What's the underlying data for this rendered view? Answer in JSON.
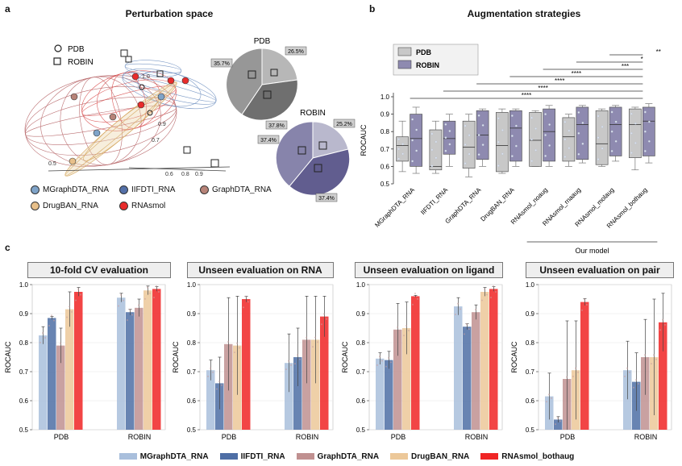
{
  "panel_labels": {
    "a": "a",
    "b": "b",
    "c": "c"
  },
  "panel_a": {
    "title": "Perturbation space",
    "legend_shapes": [
      "PDB",
      "ROBIN"
    ],
    "pie_pdb_title": "PDB",
    "pie_robin_title": "ROBIN",
    "pie_pdb_labels": [
      "26.5%",
      "35.7%",
      "37.8%"
    ],
    "pie_robin_labels": [
      "25.2%",
      "37.4%",
      "37.4%"
    ],
    "model_legend": [
      {
        "name": "MGraphDTA_RNA",
        "color": "#7fa3c8"
      },
      {
        "name": "IIFDTI_RNA",
        "color": "#5470a8"
      },
      {
        "name": "GraphDTA_RNA",
        "color": "#b78378"
      },
      {
        "name": "DrugBAN_RNA",
        "color": "#e8c08a"
      },
      {
        "name": "RNAsmol",
        "color": "#e82c2c"
      }
    ],
    "axis_ticks": [
      "0.5",
      "0.7",
      "0.9",
      "1.0",
      "0.6",
      "0.8",
      "0.9"
    ]
  },
  "chart_data": [
    {
      "type": "box",
      "title": "Augmentation strategies",
      "ylabel": "ROCAUC",
      "ylim": [
        0.5,
        1.0
      ],
      "yticks": [
        "0.5",
        "0.6",
        "0.7",
        "0.8",
        "0.9",
        "1.0"
      ],
      "legend": [
        "PDB",
        "ROBIN"
      ],
      "categories": [
        "MGraphDTA_RNA",
        "IIFDTI_RNA",
        "GraphDTA_RNA",
        "DrugBAN_RNA",
        "RNAsmol_noaug",
        "RNAsmol_rnaaug",
        "RNAsmol_molaug",
        "RNAsmol_bothaug"
      ],
      "series": [
        {
          "name": "PDB",
          "color": "#c8c8c8",
          "boxes": [
            [
              0.57,
              0.63,
              0.72,
              0.77,
              0.86
            ],
            [
              0.56,
              0.58,
              0.6,
              0.81,
              0.86
            ],
            [
              0.54,
              0.59,
              0.71,
              0.86,
              0.9
            ],
            [
              0.56,
              0.57,
              0.72,
              0.91,
              0.93
            ],
            [
              0.6,
              0.6,
              0.75,
              0.91,
              0.92
            ],
            [
              0.6,
              0.63,
              0.77,
              0.88,
              0.9
            ],
            [
              0.6,
              0.61,
              0.73,
              0.92,
              0.93
            ],
            [
              0.58,
              0.65,
              0.84,
              0.93,
              0.94
            ]
          ]
        },
        {
          "name": "ROBIN",
          "color": "#8e8ab0",
          "boxes": [
            [
              0.56,
              0.6,
              0.76,
              0.9,
              0.94
            ],
            [
              0.6,
              0.67,
              0.76,
              0.86,
              0.9
            ],
            [
              0.6,
              0.64,
              0.78,
              0.92,
              0.93
            ],
            [
              0.6,
              0.63,
              0.82,
              0.92,
              0.93
            ],
            [
              0.6,
              0.63,
              0.8,
              0.93,
              0.95
            ],
            [
              0.62,
              0.64,
              0.84,
              0.94,
              0.95
            ],
            [
              0.63,
              0.66,
              0.84,
              0.94,
              0.95
            ],
            [
              0.62,
              0.66,
              0.86,
              0.94,
              0.96
            ]
          ]
        }
      ],
      "significance": [
        "****",
        "****",
        "****",
        "****",
        "***",
        "*",
        "**"
      ],
      "group_label": "Our model"
    },
    {
      "type": "bar",
      "title": "10-fold CV evaluation",
      "ylabel": "ROCAUC",
      "ylim": [
        0.5,
        1.0
      ],
      "categories": [
        "PDB",
        "ROBIN"
      ],
      "series": [
        {
          "name": "MGraphDTA_RNA",
          "values": [
            0.825,
            0.955
          ],
          "err": [
            0.03,
            0.015
          ]
        },
        {
          "name": "IIFDTI_RNA",
          "values": [
            0.885,
            0.905
          ],
          "err": [
            0.005,
            0.01
          ]
        },
        {
          "name": "GraphDTA_RNA",
          "values": [
            0.79,
            0.92
          ],
          "err": [
            0.06,
            0.03
          ]
        },
        {
          "name": "DrugBAN_RNA",
          "values": [
            0.915,
            0.98
          ],
          "err": [
            0.06,
            0.015
          ]
        },
        {
          "name": "RNAsmol_bothaug",
          "values": [
            0.975,
            0.985
          ],
          "err": [
            0.015,
            0.008
          ]
        }
      ]
    },
    {
      "type": "bar",
      "title": "Unseen evaluation on RNA",
      "ylabel": "ROCAUC",
      "ylim": [
        0.5,
        1.0
      ],
      "categories": [
        "PDB",
        "ROBIN"
      ],
      "series": [
        {
          "name": "MGraphDTA_RNA",
          "values": [
            0.705,
            0.73
          ],
          "err": [
            0.035,
            0.1
          ]
        },
        {
          "name": "IIFDTI_RNA",
          "values": [
            0.66,
            0.75
          ],
          "err": [
            0.09,
            0.1
          ]
        },
        {
          "name": "GraphDTA_RNA",
          "values": [
            0.795,
            0.81
          ],
          "err": [
            0.16,
            0.15
          ]
        },
        {
          "name": "DrugBAN_RNA",
          "values": [
            0.79,
            0.81
          ],
          "err": [
            0.17,
            0.15
          ]
        },
        {
          "name": "RNAsmol_bothaug",
          "values": [
            0.95,
            0.89
          ],
          "err": [
            0.01,
            0.07
          ]
        }
      ]
    },
    {
      "type": "bar",
      "title": "Unseen evaluation on ligand",
      "ylabel": "ROCAUC",
      "ylim": [
        0.5,
        1.0
      ],
      "categories": [
        "PDB",
        "ROBIN"
      ],
      "series": [
        {
          "name": "MGraphDTA_RNA",
          "values": [
            0.745,
            0.925
          ],
          "err": [
            0.02,
            0.03
          ]
        },
        {
          "name": "IIFDTI_RNA",
          "values": [
            0.74,
            0.855
          ],
          "err": [
            0.03,
            0.01
          ]
        },
        {
          "name": "GraphDTA_RNA",
          "values": [
            0.845,
            0.905
          ],
          "err": [
            0.09,
            0.025
          ]
        },
        {
          "name": "DrugBAN_RNA",
          "values": [
            0.85,
            0.975
          ],
          "err": [
            0.09,
            0.015
          ]
        },
        {
          "name": "RNAsmol_bothaug",
          "values": [
            0.96,
            0.985
          ],
          "err": [
            0.003,
            0.008
          ]
        }
      ]
    },
    {
      "type": "bar",
      "title": "Unseen evaluation on pair",
      "ylabel": "ROCAUC",
      "ylim": [
        0.5,
        1.0
      ],
      "categories": [
        "PDB",
        "ROBIN"
      ],
      "series": [
        {
          "name": "MGraphDTA_RNA",
          "values": [
            0.615,
            0.705
          ],
          "err": [
            0.08,
            0.1
          ]
        },
        {
          "name": "IIFDTI_RNA",
          "values": [
            0.535,
            0.665
          ],
          "err": [
            0.01,
            0.1
          ]
        },
        {
          "name": "GraphDTA_RNA",
          "values": [
            0.675,
            0.75
          ],
          "err": [
            0.2,
            0.13
          ]
        },
        {
          "name": "DrugBAN_RNA",
          "values": [
            0.705,
            0.75
          ],
          "err": [
            0.17,
            0.2
          ]
        },
        {
          "name": "RNAsmol_bothaug",
          "values": [
            0.94,
            0.87
          ],
          "err": [
            0.012,
            0.1
          ]
        }
      ]
    }
  ],
  "bar_yticks": [
    "0.5",
    "0.6",
    "0.7",
    "0.8",
    "0.9",
    "1.0"
  ],
  "bottom_legend": [
    {
      "name": "MGraphDTA_RNA",
      "color": "#a9bfdc"
    },
    {
      "name": "IIFDTI_RNA",
      "color": "#4e6ea5"
    },
    {
      "name": "GraphDTA_RNA",
      "color": "#c09090"
    },
    {
      "name": "DrugBAN_RNA",
      "color": "#ecc899"
    },
    {
      "name": "RNAsmol_bothaug",
      "color": "#f02525"
    }
  ]
}
